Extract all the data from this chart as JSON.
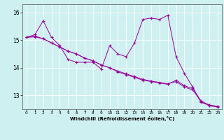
{
  "xlabel": "Windchill (Refroidissement éolien,°C)",
  "background_color": "#cff0f0",
  "grid_color": "#ffffff",
  "line_color": "#990099",
  "xlim": [
    -0.5,
    23.5
  ],
  "ylim": [
    12.5,
    16.3
  ],
  "yticks": [
    13,
    14,
    15,
    16
  ],
  "xticks": [
    0,
    1,
    2,
    3,
    4,
    5,
    6,
    7,
    8,
    9,
    10,
    11,
    12,
    13,
    14,
    15,
    16,
    17,
    18,
    19,
    20,
    21,
    22,
    23
  ],
  "series1": [
    15.1,
    15.2,
    15.7,
    15.1,
    14.8,
    14.3,
    14.2,
    14.2,
    14.2,
    13.95,
    14.8,
    14.5,
    14.4,
    14.9,
    15.75,
    15.8,
    15.75,
    15.9,
    14.4,
    13.8,
    13.3,
    12.75,
    12.65,
    12.6
  ],
  "series2": [
    15.1,
    15.15,
    15.05,
    14.9,
    14.75,
    14.6,
    14.5,
    14.35,
    14.25,
    14.1,
    14.0,
    13.85,
    13.75,
    13.65,
    13.55,
    13.5,
    13.45,
    13.4,
    13.55,
    13.35,
    13.25,
    12.8,
    12.65,
    12.6
  ],
  "series3": [
    15.1,
    15.12,
    15.05,
    14.9,
    14.75,
    14.6,
    14.5,
    14.35,
    14.25,
    14.1,
    14.0,
    13.88,
    13.78,
    13.68,
    13.58,
    13.52,
    13.47,
    13.42,
    13.5,
    13.3,
    13.2,
    12.78,
    12.62,
    12.58
  ]
}
